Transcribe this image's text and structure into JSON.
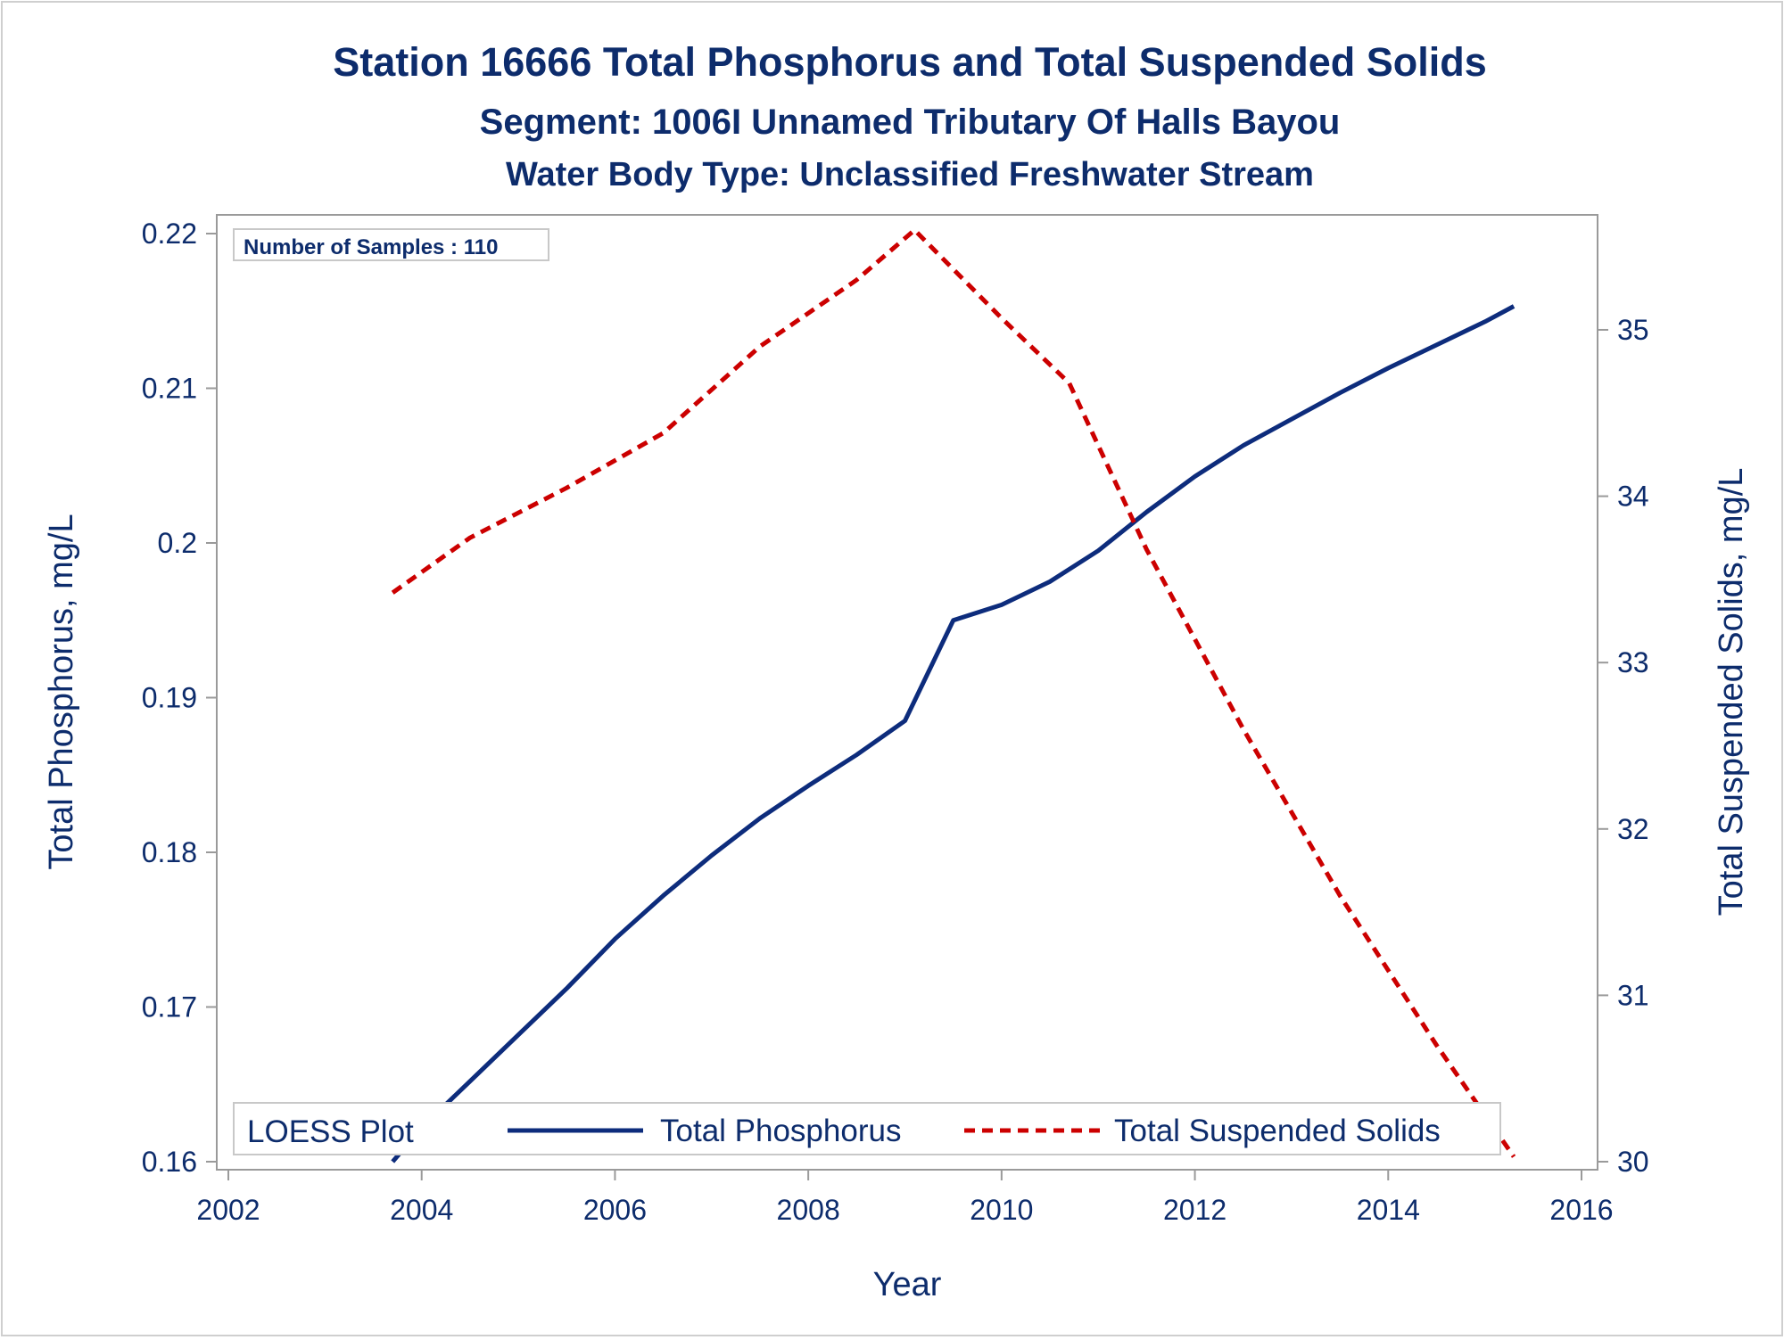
{
  "chart_data": {
    "type": "line",
    "title": "Station 16666  Total Phosphorus and Total Suspended Solids",
    "subtitle": "Segment: 1006I  Unnamed Tributary Of Halls Bayou",
    "subtitle2": "Water Body Type: Unclassified Freshwater Stream",
    "xlabel": "Year",
    "ylabel_left": "Total Phosphorus, mg/L",
    "ylabel_right": "Total Suspended Solids, mg/L",
    "xlim": [
      2002,
      2016
    ],
    "ylim_left": [
      0.16,
      0.22
    ],
    "ylim_right": [
      30,
      35.6
    ],
    "x_ticks": [
      "2002",
      "2004",
      "2006",
      "2008",
      "2010",
      "2012",
      "2014",
      "2016"
    ],
    "y_left_ticks": [
      "0.16",
      "0.17",
      "0.18",
      "0.19",
      "0.2",
      "0.21",
      "0.22"
    ],
    "y_right_ticks": [
      "30",
      "31",
      "32",
      "33",
      "34",
      "35"
    ],
    "annotation": "Number of Samples : 110",
    "legend": {
      "title": "LOESS Plot",
      "placement": "bottom-inside",
      "entries": [
        "Total Phosphorus",
        "Total Suspended Solids"
      ]
    },
    "grid": false,
    "series": [
      {
        "name": "Total Phosphorus",
        "axis": "left",
        "color": "#0d2c7c",
        "style": "solid",
        "x": [
          2003.7,
          2004.0,
          2004.5,
          2005.0,
          2005.5,
          2006.0,
          2006.5,
          2007.0,
          2007.5,
          2008.0,
          2008.5,
          2009.0,
          2009.5,
          2010.0,
          2010.5,
          2011.0,
          2011.5,
          2012.0,
          2012.5,
          2013.0,
          2013.5,
          2014.0,
          2014.5,
          2015.0,
          2015.3
        ],
        "values": [
          0.16,
          0.1622,
          0.1652,
          0.1682,
          0.1712,
          0.1744,
          0.1772,
          0.1798,
          0.1822,
          0.1843,
          0.1863,
          0.1885,
          0.195,
          0.196,
          0.1975,
          0.1995,
          0.202,
          0.2043,
          0.2063,
          0.208,
          0.2097,
          0.2113,
          0.2128,
          0.2143,
          0.2153
        ]
      },
      {
        "name": "Total Suspended Solids",
        "axis": "right",
        "color": "#cc0000",
        "style": "dashed",
        "x": [
          2003.7,
          2004.5,
          2005.5,
          2006.5,
          2007.5,
          2008.5,
          2009.1,
          2010.0,
          2010.7,
          2011.5,
          2012.5,
          2013.5,
          2014.5,
          2015.3
        ],
        "values": [
          33.42,
          33.75,
          34.05,
          34.38,
          34.9,
          35.3,
          35.6,
          35.07,
          34.68,
          33.68,
          32.6,
          31.6,
          30.7,
          30.03
        ]
      }
    ]
  }
}
